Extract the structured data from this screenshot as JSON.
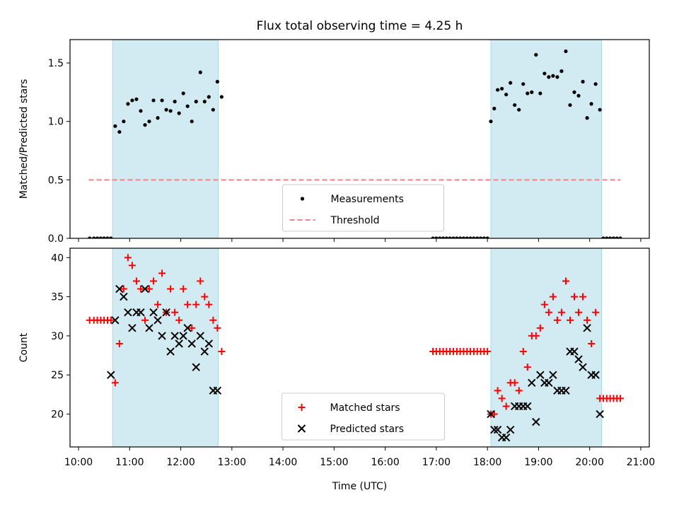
{
  "title": "Flux total observing time = 4.25 h",
  "xlabel": "Time (UTC)",
  "x_ticks": [
    "10:00",
    "11:00",
    "12:00",
    "13:00",
    "14:00",
    "15:00",
    "16:00",
    "17:00",
    "18:00",
    "19:00",
    "20:00",
    "21:00"
  ],
  "colors": {
    "shade": "#add8e6",
    "threshold": "#ff7f7f",
    "matched": "#ff0000",
    "predicted": "#000000",
    "measure": "#000000"
  },
  "chart_data": [
    {
      "type": "scatter",
      "ylabel": "Matched/Predicted stars",
      "xlim": [
        "09:50",
        "21:10"
      ],
      "ylim": [
        0,
        1.7
      ],
      "y_ticks": [
        "0.0",
        "0.5",
        "1.0",
        "1.5"
      ],
      "shaded_intervals": [
        [
          "10:40",
          "12:44"
        ],
        [
          "18:04",
          "20:14"
        ]
      ],
      "legend": {
        "position": "lower center",
        "entries": [
          "Measurements",
          "Threshold"
        ]
      },
      "threshold": {
        "name": "Threshold",
        "value": 0.5,
        "x_range": [
          "10:12",
          "20:36"
        ]
      },
      "series": [
        {
          "name": "Measurements",
          "x": [
            "10:13",
            "10:18",
            "10:22",
            "10:26",
            "10:30",
            "10:34",
            "10:38",
            "10:43",
            "10:48",
            "10:53",
            "10:58",
            "11:03",
            "11:08",
            "11:13",
            "11:18",
            "11:23",
            "11:28",
            "11:33",
            "11:38",
            "11:43",
            "11:48",
            "11:53",
            "11:58",
            "12:03",
            "12:08",
            "12:13",
            "12:18",
            "12:23",
            "12:28",
            "12:33",
            "12:38",
            "12:43",
            "12:48",
            "16:56",
            "17:00",
            "17:04",
            "17:08",
            "17:12",
            "17:16",
            "17:20",
            "17:24",
            "17:28",
            "17:32",
            "17:36",
            "17:40",
            "17:44",
            "17:48",
            "17:52",
            "17:56",
            "18:00",
            "18:04",
            "18:08",
            "18:12",
            "18:17",
            "18:22",
            "18:27",
            "18:32",
            "18:37",
            "18:42",
            "18:47",
            "18:52",
            "18:57",
            "19:02",
            "19:07",
            "19:12",
            "19:17",
            "19:22",
            "19:27",
            "19:32",
            "19:37",
            "19:42",
            "19:47",
            "19:52",
            "19:57",
            "20:02",
            "20:07",
            "20:12",
            "20:16",
            "20:20",
            "20:24",
            "20:28",
            "20:32",
            "20:36"
          ],
          "y": [
            0,
            0,
            0,
            0,
            0,
            0,
            0,
            0.96,
            0.91,
            1.0,
            1.15,
            1.18,
            1.19,
            1.09,
            0.97,
            1.0,
            1.18,
            1.03,
            1.18,
            1.1,
            1.09,
            1.17,
            1.07,
            1.24,
            1.13,
            1.0,
            1.17,
            1.42,
            1.17,
            1.21,
            1.1,
            1.34,
            1.21,
            0,
            0,
            0,
            0,
            0,
            0,
            0,
            0,
            0,
            0,
            0,
            0,
            0,
            0,
            0,
            0,
            0,
            1.0,
            1.11,
            1.27,
            1.28,
            1.23,
            1.33,
            1.14,
            1.1,
            1.32,
            1.24,
            1.25,
            1.57,
            1.24,
            1.41,
            1.38,
            1.39,
            1.38,
            1.43,
            1.6,
            1.14,
            1.25,
            1.22,
            1.34,
            1.03,
            1.15,
            1.32,
            1.1,
            0,
            0,
            0,
            0,
            0,
            0
          ]
        }
      ]
    },
    {
      "type": "scatter",
      "ylabel": "Count",
      "xlim": [
        "09:50",
        "21:10"
      ],
      "ylim": [
        15.8,
        41.2
      ],
      "y_ticks": [
        "20",
        "25",
        "30",
        "35",
        "40"
      ],
      "shaded_intervals": [
        [
          "10:40",
          "12:44"
        ],
        [
          "18:04",
          "20:14"
        ]
      ],
      "legend": {
        "position": "lower center",
        "entries": [
          "Matched stars",
          "Predicted stars"
        ]
      },
      "series": [
        {
          "name": "Matched stars",
          "marker": "plus",
          "x": [
            "10:13",
            "10:18",
            "10:22",
            "10:26",
            "10:30",
            "10:34",
            "10:38",
            "10:43",
            "10:48",
            "10:53",
            "10:58",
            "11:03",
            "11:08",
            "11:13",
            "11:18",
            "11:23",
            "11:28",
            "11:33",
            "11:38",
            "11:43",
            "11:48",
            "11:53",
            "11:58",
            "12:03",
            "12:08",
            "12:13",
            "12:18",
            "12:23",
            "12:28",
            "12:33",
            "12:38",
            "12:43",
            "12:48",
            "16:56",
            "17:00",
            "17:04",
            "17:08",
            "17:12",
            "17:16",
            "17:20",
            "17:24",
            "17:28",
            "17:32",
            "17:36",
            "17:40",
            "17:44",
            "17:48",
            "17:52",
            "17:56",
            "18:00",
            "18:04",
            "18:08",
            "18:12",
            "18:17",
            "18:22",
            "18:27",
            "18:32",
            "18:37",
            "18:42",
            "18:47",
            "18:52",
            "18:57",
            "19:02",
            "19:07",
            "19:12",
            "19:17",
            "19:22",
            "19:27",
            "19:32",
            "19:37",
            "19:42",
            "19:47",
            "19:52",
            "19:57",
            "20:02",
            "20:07",
            "20:12",
            "20:16",
            "20:20",
            "20:24",
            "20:28",
            "20:32",
            "20:36"
          ],
          "y": [
            32,
            32,
            32,
            32,
            32,
            32,
            32,
            24,
            29,
            36,
            40,
            39,
            37,
            36,
            32,
            36,
            37,
            34,
            38,
            33,
            36,
            33,
            32,
            36,
            34,
            31,
            34,
            37,
            35,
            34,
            32,
            31,
            28,
            28,
            28,
            28,
            28,
            28,
            28,
            28,
            28,
            28,
            28,
            28,
            28,
            28,
            28,
            28,
            28,
            28,
            20,
            20,
            23,
            22,
            21,
            24,
            24,
            23,
            28,
            26,
            30,
            30,
            31,
            34,
            33,
            35,
            32,
            33,
            37,
            32,
            35,
            33,
            35,
            32,
            29,
            33,
            22,
            22,
            22,
            22,
            22,
            22,
            22
          ]
        },
        {
          "name": "Predicted stars",
          "marker": "x",
          "x": [
            "10:38",
            "10:43",
            "10:48",
            "10:53",
            "10:58",
            "11:03",
            "11:08",
            "11:13",
            "11:18",
            "11:23",
            "11:28",
            "11:33",
            "11:38",
            "11:43",
            "11:48",
            "11:53",
            "11:58",
            "12:03",
            "12:08",
            "12:13",
            "12:18",
            "12:23",
            "12:28",
            "12:33",
            "12:38",
            "12:43",
            "18:04",
            "18:08",
            "18:12",
            "18:17",
            "18:22",
            "18:27",
            "18:32",
            "18:37",
            "18:42",
            "18:47",
            "18:52",
            "18:57",
            "19:02",
            "19:07",
            "19:12",
            "19:17",
            "19:22",
            "19:27",
            "19:32",
            "19:37",
            "19:42",
            "19:47",
            "19:52",
            "19:57",
            "20:02",
            "20:07",
            "20:12"
          ],
          "y": [
            25,
            32,
            36,
            35,
            33,
            31,
            33,
            33,
            36,
            31,
            33,
            32,
            30,
            33,
            28,
            30,
            29,
            30,
            31,
            29,
            26,
            30,
            28,
            29,
            23,
            23,
            20,
            18,
            18,
            17,
            17,
            18,
            21,
            21,
            21,
            21,
            24,
            19,
            25,
            24,
            24,
            25,
            23,
            23,
            23,
            28,
            28,
            27,
            26,
            31,
            25,
            25,
            20
          ]
        }
      ]
    }
  ]
}
